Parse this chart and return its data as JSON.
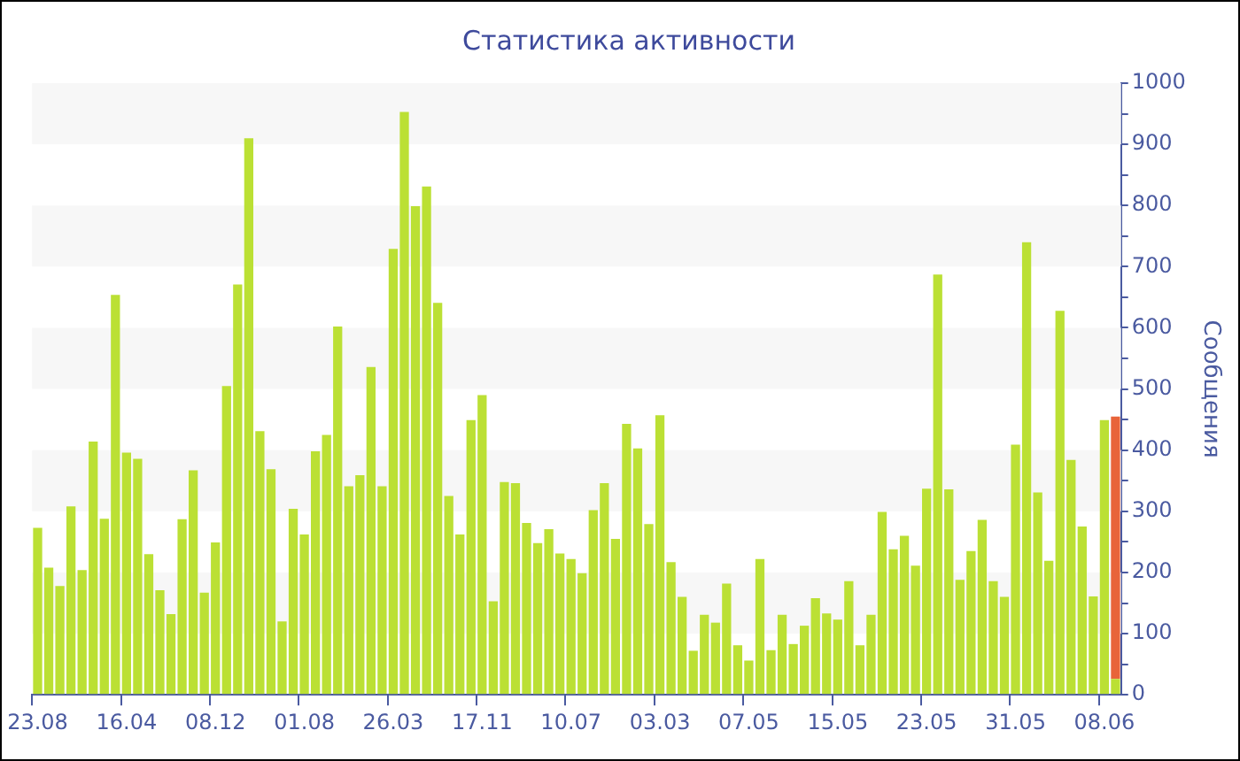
{
  "chart_data": {
    "type": "bar",
    "title": "Статистика активности",
    "ylabel": "Сообщения",
    "stacked": true,
    "categories": [
      "23.08",
      null,
      null,
      null,
      null,
      null,
      null,
      null,
      "16.04",
      null,
      null,
      null,
      null,
      null,
      null,
      null,
      "08.12",
      null,
      null,
      null,
      null,
      null,
      null,
      null,
      "01.08",
      null,
      null,
      null,
      null,
      null,
      null,
      null,
      "26.03",
      null,
      null,
      null,
      null,
      null,
      null,
      null,
      "17.11",
      null,
      null,
      null,
      null,
      null,
      null,
      null,
      "10.07",
      null,
      null,
      null,
      null,
      null,
      null,
      null,
      "03.03",
      null,
      null,
      null,
      null,
      null,
      null,
      null,
      "07.05",
      null,
      null,
      null,
      null,
      null,
      null,
      null,
      "15.05",
      null,
      null,
      null,
      null,
      null,
      null,
      null,
      "23.05",
      null,
      null,
      null,
      null,
      null,
      null,
      null,
      "31.05",
      null,
      null,
      null,
      null,
      null,
      null,
      null,
      "08.06",
      null
    ],
    "series": [
      {
        "color": "#bbe034",
        "values": [
          273,
          208,
          178,
          308,
          204,
          414,
          288,
          654,
          396,
          386,
          230,
          171,
          132,
          287,
          367,
          167,
          249,
          505,
          671,
          910,
          431,
          369,
          120,
          304,
          262,
          398,
          425,
          602,
          341,
          359,
          536,
          341,
          729,
          953,
          799,
          831,
          641,
          325,
          262,
          449,
          490,
          153,
          348,
          346,
          281,
          248,
          271,
          231,
          222,
          199,
          302,
          346,
          255,
          443,
          403,
          279,
          457,
          217,
          160,
          72,
          131,
          118,
          182,
          81,
          56,
          222,
          73,
          131,
          83,
          113,
          158,
          133,
          123,
          186,
          81,
          131,
          299,
          238,
          260,
          211,
          337,
          687,
          336,
          188,
          235,
          286,
          186,
          160,
          409,
          740,
          331,
          219,
          628,
          384,
          275,
          161,
          449,
          26
        ]
      },
      {
        "color": "#e8643a",
        "values": [
          null,
          null,
          null,
          null,
          null,
          null,
          null,
          null,
          null,
          null,
          null,
          null,
          null,
          null,
          null,
          null,
          null,
          null,
          null,
          null,
          null,
          null,
          null,
          null,
          null,
          null,
          null,
          null,
          null,
          null,
          null,
          null,
          null,
          null,
          null,
          null,
          null,
          null,
          null,
          null,
          null,
          null,
          null,
          null,
          null,
          null,
          null,
          null,
          null,
          null,
          null,
          null,
          null,
          null,
          null,
          null,
          null,
          null,
          null,
          null,
          null,
          null,
          null,
          null,
          null,
          null,
          null,
          null,
          null,
          null,
          null,
          null,
          null,
          null,
          null,
          null,
          null,
          null,
          null,
          null,
          null,
          null,
          null,
          null,
          null,
          null,
          null,
          null,
          null,
          null,
          null,
          null,
          null,
          null,
          null,
          null,
          null,
          429
        ]
      }
    ],
    "ylim": [
      0,
      1000
    ],
    "yticks": [
      0,
      {
        "value": 50,
        "label": null
      },
      100,
      {
        "value": 150,
        "label": null
      },
      200,
      {
        "value": 250,
        "label": null
      },
      300,
      {
        "value": 350,
        "label": null
      },
      400,
      {
        "value": 450,
        "label": null
      },
      500,
      {
        "value": 550,
        "label": null
      },
      600,
      {
        "value": 650,
        "label": null
      },
      700,
      {
        "value": 750,
        "label": null
      },
      800,
      {
        "value": 850,
        "label": null
      },
      900,
      {
        "value": 950,
        "label": null
      },
      1000
    ],
    "bands": [
      {
        "axis": "y",
        "from": 100,
        "to": 200,
        "color": "#f7f7f7"
      },
      {
        "axis": "y",
        "from": 300,
        "to": 400,
        "color": "#f7f7f7"
      },
      {
        "axis": "y",
        "from": 500,
        "to": 600,
        "color": "#f7f7f7"
      },
      {
        "axis": "y",
        "from": 700,
        "to": 800,
        "color": "#f7f7f7"
      },
      {
        "axis": "y",
        "from": 900,
        "to": 1000,
        "color": "#f7f7f7"
      }
    ],
    "legend": false
  }
}
